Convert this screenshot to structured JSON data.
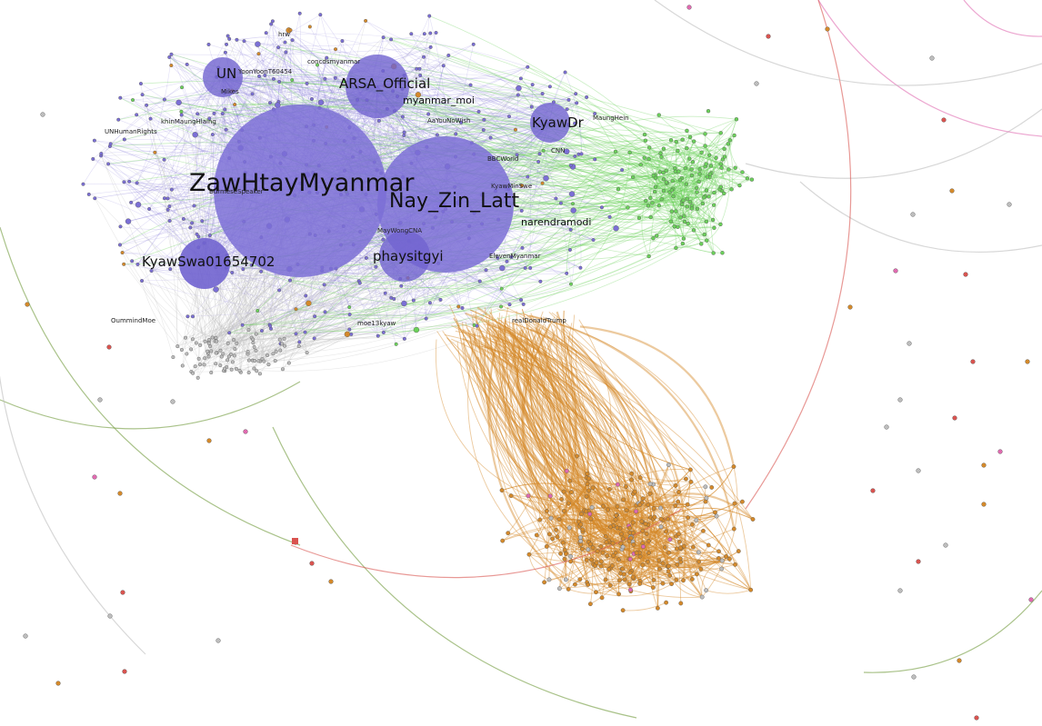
{
  "colors": {
    "purple": "#7b6fd6",
    "green": "#6bd15a",
    "orange": "#d4892a",
    "gray": "#bdbdbd",
    "red": "#d9534f",
    "pink": "#e06ab0",
    "olive": "#6f9a3a"
  },
  "labels": {
    "zawhtaymyanmar": "ZawHtayMyanmar",
    "nay_zin_latt": "Nay_Zin_Latt",
    "kyawswa01654702": "KyawSwa01654702",
    "phaysitgyi": "phaysitgyi",
    "arsa_official": "ARSA_Official",
    "kyawdr": "KyawDr",
    "un": "UN",
    "myanmar_moi": "myanmar_moi",
    "narendramodi": "narendramodi",
    "yoonyoont": "YoonYoonT60454",
    "conduct": "concdsmyanmar",
    "aayounowish": "AaYouNoWish",
    "cnn": "CNN",
    "realdonaldtrump": "realDonaldTrump",
    "maywongcna": "MayWongCNA",
    "elevenmyanmar": "ElevenMyanmar",
    "bbcworld": "BBCWorld",
    "mikes": "Mikes",
    "moe13": "moe13kyaw",
    "kn": "KyawMinSwe",
    "hrw": "hrw",
    "unhumanrights": "UNHumanRights",
    "khinmaung": "khinMaungHlaing",
    "burmese": "BurmeseSpeaker",
    "maunghein": "MaungHein",
    "dumoe": "OummindMoe"
  }
}
